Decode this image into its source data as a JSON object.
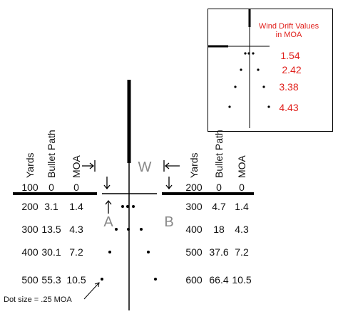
{
  "left_table": {
    "headers": [
      "Yards",
      "Bullet Path",
      "MOA"
    ],
    "rows": [
      [
        "100",
        "0",
        "0"
      ],
      [
        "200",
        "3.1",
        "1.4"
      ],
      [
        "300",
        "13.5",
        "4.3"
      ],
      [
        "400",
        "30.1",
        "7.2"
      ],
      [
        "500",
        "55.3",
        "10.5"
      ]
    ]
  },
  "right_table": {
    "headers": [
      "Yards",
      "Bullet Path",
      "MOA"
    ],
    "rows": [
      [
        "200",
        "0",
        "0"
      ],
      [
        "300",
        "4.7",
        "1.4"
      ],
      [
        "400",
        "18",
        "4.3"
      ],
      [
        "500",
        "37.6",
        "7.2"
      ],
      [
        "600",
        "66.4",
        "10.5"
      ]
    ]
  },
  "labels": {
    "a": "A",
    "b": "B",
    "w": "W",
    "dot_size": "Dot size = .25 MOA"
  },
  "inset": {
    "title": [
      "Wind Drift Values",
      "in MOA"
    ],
    "values": [
      "1.54",
      "2.42",
      "3.38",
      "4.43"
    ]
  }
}
